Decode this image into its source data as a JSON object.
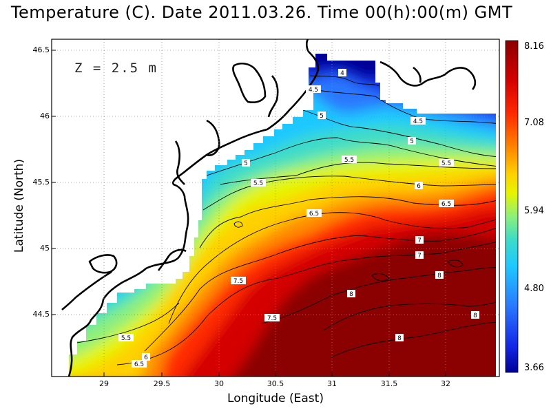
{
  "title": "Temperature (C). Date 2011.03.26. Time 00(h):00(m) GMT",
  "depth_label": "Z = 2.5 m",
  "x_axis": {
    "label": "Longitude (East)",
    "ticks": [
      "29",
      "29.5",
      "30",
      "30.5",
      "31",
      "31.5",
      "32"
    ]
  },
  "y_axis": {
    "label": "Latitude (North)",
    "ticks": [
      "46.5",
      "46",
      "45.5",
      "45",
      "44.5"
    ]
  },
  "colorbar": {
    "ticks": [
      "8.16",
      "7.08",
      "5.94",
      "4.80",
      "3.66"
    ],
    "colors": [
      "#8b0000",
      "#d40000",
      "#ff2a00",
      "#ff8c00",
      "#ffd000",
      "#e6f400",
      "#8cf07a",
      "#3cdcc8",
      "#1ec8ff",
      "#2a78ff",
      "#1428e6",
      "#000096"
    ]
  },
  "contour_labels": [
    {
      "text": "4"
    },
    {
      "text": "4.5"
    },
    {
      "text": "5"
    },
    {
      "text": "4.5"
    },
    {
      "text": "5"
    },
    {
      "text": "5.5"
    },
    {
      "text": "5.5"
    },
    {
      "text": "5"
    },
    {
      "text": "5.5"
    },
    {
      "text": "6"
    },
    {
      "text": "6.5"
    },
    {
      "text": "6.5"
    },
    {
      "text": "7"
    },
    {
      "text": "7.5"
    },
    {
      "text": "8"
    },
    {
      "text": "7"
    },
    {
      "text": "8"
    },
    {
      "text": "7.5"
    },
    {
      "text": "8"
    },
    {
      "text": "8"
    },
    {
      "text": "5.5"
    },
    {
      "text": "6"
    },
    {
      "text": "6.5"
    }
  ],
  "chart_data": {
    "type": "heatmap",
    "variable": "Temperature (C)",
    "date": "2011.03.26",
    "time": "00(h):00(m) GMT",
    "depth": "2.5 m",
    "xlim": [
      28.55,
      32.45
    ],
    "ylim": [
      44.05,
      46.55
    ],
    "clim": [
      3.66,
      8.16
    ],
    "contour_levels": [
      4,
      4.5,
      5,
      5.5,
      6,
      6.5,
      7,
      7.5,
      8
    ],
    "grid": true
  }
}
